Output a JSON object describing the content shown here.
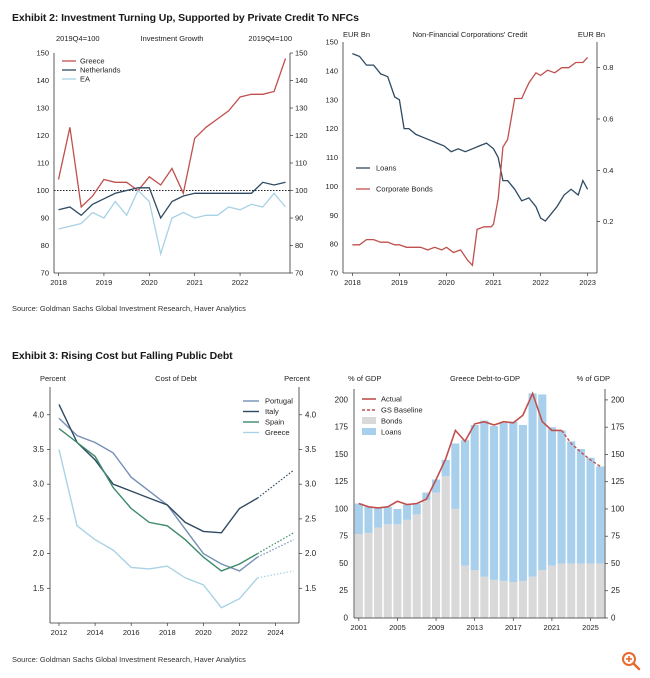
{
  "exhibit2": {
    "title": "Exhibit 2: Investment Turning Up, Supported by Private Credit To NFCs",
    "source": "Source: Goldman Sachs Global Investment Research, Haver Analytics"
  },
  "exhibit3": {
    "title": "Exhibit 3: Rising Cost but Falling Public Debt",
    "source": "Source: Goldman Sachs Global Investment Research, Haver Analytics"
  },
  "colors": {
    "red": "#c0504d",
    "navy": "#2e4a62",
    "lightblue": "#a9d2e6",
    "blue": "#7590b6",
    "green": "#3d8a6a",
    "grey": "#d9d9d9",
    "bars": "#a8d0ec"
  },
  "zoom_icon": "zoom-in-icon",
  "chart_data": [
    {
      "id": "investment-growth",
      "type": "line",
      "title": "Investment Growth",
      "left_label": "2019Q4=100",
      "right_label": "2019Q4=100",
      "ylim": [
        70,
        150
      ],
      "y_ticks": [
        70,
        80,
        90,
        100,
        110,
        120,
        130,
        140,
        150
      ],
      "x_range": [
        2017.9,
        2023.1
      ],
      "x_ticks": [
        2018,
        2019,
        2020,
        2021,
        2022
      ],
      "reference_line": 100,
      "legend": "top-left",
      "series": [
        {
          "name": "Greece",
          "color_key": "red",
          "x": [
            2018.0,
            2018.25,
            2018.5,
            2018.75,
            2019.0,
            2019.25,
            2019.5,
            2019.75,
            2020.0,
            2020.25,
            2020.5,
            2020.75,
            2021.0,
            2021.25,
            2021.5,
            2021.75,
            2022.0,
            2022.25,
            2022.5,
            2022.75,
            2023.0
          ],
          "y": [
            104,
            123,
            94,
            98,
            104,
            103,
            103,
            100,
            105,
            102,
            108,
            99,
            119,
            123,
            126,
            129,
            134,
            135,
            135,
            136,
            148
          ]
        },
        {
          "name": "Netherlands",
          "color_key": "navy",
          "x": [
            2018.0,
            2018.25,
            2018.5,
            2018.75,
            2019.0,
            2019.25,
            2019.5,
            2019.75,
            2020.0,
            2020.25,
            2020.5,
            2020.75,
            2021.0,
            2021.25,
            2021.5,
            2021.75,
            2022.0,
            2022.25,
            2022.5,
            2022.75,
            2023.0
          ],
          "y": [
            93,
            94,
            91,
            95,
            97,
            99,
            100,
            101,
            101,
            90,
            96,
            98,
            99,
            99,
            99,
            99,
            99,
            99,
            103,
            102,
            103
          ]
        },
        {
          "name": "EA",
          "color_key": "lightblue",
          "x": [
            2018.0,
            2018.25,
            2018.5,
            2018.75,
            2019.0,
            2019.25,
            2019.5,
            2019.75,
            2020.0,
            2020.25,
            2020.5,
            2020.75,
            2021.0,
            2021.25,
            2021.5,
            2021.75,
            2022.0,
            2022.25,
            2022.5,
            2022.75,
            2023.0
          ],
          "y": [
            86,
            87,
            88,
            92,
            90,
            96,
            91,
            100,
            96,
            77,
            90,
            92,
            90,
            91,
            91,
            94,
            93,
            95,
            94,
            99,
            94
          ]
        }
      ]
    },
    {
      "id": "nfc-credit",
      "type": "line",
      "title": "Non-Financial Corporations' Credit",
      "left_label": "EUR Bn",
      "right_label": "EUR Bn",
      "ylim_left": [
        70,
        150
      ],
      "y_ticks_left": [
        70,
        80,
        90,
        100,
        110,
        120,
        130,
        140,
        150
      ],
      "ylim_right": [
        0.0,
        0.9
      ],
      "y_ticks_right": [
        0.2,
        0.4,
        0.6,
        0.8
      ],
      "x_range": [
        2017.8,
        2023.2
      ],
      "x_ticks": [
        2018,
        2019,
        2020,
        2021,
        2022,
        2023
      ],
      "legend": "middle-left",
      "series": [
        {
          "name": "Loans",
          "axis": "left",
          "color_key": "navy",
          "x": [
            2018.0,
            2018.15,
            2018.3,
            2018.45,
            2018.6,
            2018.75,
            2018.9,
            2019.0,
            2019.1,
            2019.2,
            2019.35,
            2019.5,
            2019.65,
            2019.8,
            2019.95,
            2020.1,
            2020.25,
            2020.4,
            2020.55,
            2020.7,
            2020.85,
            2021.0,
            2021.1,
            2021.2,
            2021.3,
            2021.45,
            2021.6,
            2021.75,
            2021.9,
            2022.0,
            2022.1,
            2022.2,
            2022.35,
            2022.5,
            2022.65,
            2022.8,
            2022.9,
            2023.0
          ],
          "y": [
            146,
            145,
            142,
            142,
            139,
            138,
            131,
            130,
            120,
            120,
            118,
            117,
            116,
            115,
            114,
            112,
            113,
            112,
            113,
            114,
            115,
            113,
            110,
            102,
            102,
            99,
            95,
            96,
            93,
            89,
            88,
            90,
            93,
            97,
            99,
            97,
            102,
            99
          ]
        },
        {
          "name": "Corporate Bonds",
          "axis": "right",
          "color_key": "red",
          "x": [
            2018.0,
            2018.15,
            2018.3,
            2018.45,
            2018.6,
            2018.75,
            2018.9,
            2019.0,
            2019.15,
            2019.3,
            2019.45,
            2019.6,
            2019.75,
            2019.9,
            2020.0,
            2020.15,
            2020.3,
            2020.45,
            2020.55,
            2020.65,
            2020.8,
            2020.95,
            2021.0,
            2021.1,
            2021.2,
            2021.3,
            2021.45,
            2021.6,
            2021.75,
            2021.9,
            2022.0,
            2022.15,
            2022.3,
            2022.45,
            2022.6,
            2022.75,
            2022.9,
            2023.0
          ],
          "y": [
            0.11,
            0.11,
            0.13,
            0.13,
            0.12,
            0.12,
            0.11,
            0.11,
            0.1,
            0.1,
            0.1,
            0.09,
            0.1,
            0.09,
            0.1,
            0.08,
            0.09,
            0.05,
            0.03,
            0.17,
            0.18,
            0.18,
            0.19,
            0.29,
            0.49,
            0.52,
            0.68,
            0.68,
            0.74,
            0.78,
            0.77,
            0.79,
            0.78,
            0.8,
            0.8,
            0.82,
            0.82,
            0.84
          ]
        }
      ]
    },
    {
      "id": "cost-of-debt",
      "type": "line",
      "title": "Cost of Debt",
      "left_label": "Percent",
      "right_label": "Percent",
      "ylim": [
        1.0,
        4.4
      ],
      "y_ticks": [
        1.5,
        2.0,
        2.5,
        3.0,
        3.5,
        4.0
      ],
      "x_range": [
        2011.5,
        2025.3
      ],
      "x_ticks": [
        2012,
        2014,
        2016,
        2018,
        2020,
        2022,
        2024
      ],
      "legend": "top-right",
      "projection_from": 2023,
      "series": [
        {
          "name": "Portugal",
          "color_key": "blue",
          "x": [
            2012,
            2013,
            2014,
            2015,
            2016,
            2017,
            2018,
            2019,
            2020,
            2021,
            2022,
            2023,
            2025
          ],
          "y": [
            3.95,
            3.7,
            3.6,
            3.45,
            3.1,
            2.9,
            2.7,
            2.35,
            2.0,
            1.85,
            1.75,
            1.95,
            2.2
          ]
        },
        {
          "name": "Italy",
          "color_key": "navy",
          "x": [
            2012,
            2013,
            2014,
            2015,
            2016,
            2017,
            2018,
            2019,
            2020,
            2021,
            2022,
            2023,
            2025
          ],
          "y": [
            4.15,
            3.6,
            3.35,
            3.0,
            2.9,
            2.8,
            2.7,
            2.45,
            2.32,
            2.3,
            2.65,
            2.8,
            3.2
          ]
        },
        {
          "name": "Spain",
          "color_key": "green",
          "x": [
            2012,
            2013,
            2014,
            2015,
            2016,
            2017,
            2018,
            2019,
            2020,
            2021,
            2022,
            2023,
            2025
          ],
          "y": [
            3.8,
            3.6,
            3.4,
            2.95,
            2.65,
            2.45,
            2.4,
            2.2,
            1.95,
            1.75,
            1.85,
            2.0,
            2.3
          ]
        },
        {
          "name": "Greece",
          "color_key": "lightblue",
          "x": [
            2012,
            2013,
            2014,
            2015,
            2016,
            2017,
            2018,
            2019,
            2020,
            2021,
            2022,
            2023,
            2025
          ],
          "y": [
            3.5,
            2.4,
            2.2,
            2.05,
            1.8,
            1.78,
            1.82,
            1.65,
            1.55,
            1.22,
            1.35,
            1.65,
            1.75
          ]
        }
      ]
    },
    {
      "id": "greece-debt-to-gdp",
      "type": "bar",
      "title": "Greece Debt-to-GDP",
      "left_label": "% of GDP",
      "right_label": "% of GDP",
      "ylim": [
        0,
        210
      ],
      "y_ticks": [
        0,
        25,
        50,
        75,
        100,
        125,
        150,
        175,
        200
      ],
      "x_ticks": [
        2001,
        2005,
        2009,
        2013,
        2017,
        2021,
        2025
      ],
      "legend": "top-left",
      "years": [
        2001,
        2002,
        2003,
        2004,
        2005,
        2006,
        2007,
        2008,
        2009,
        2010,
        2011,
        2012,
        2013,
        2014,
        2015,
        2016,
        2017,
        2018,
        2019,
        2020,
        2021,
        2022,
        2023,
        2024,
        2025,
        2026
      ],
      "series": [
        {
          "name": "Bonds",
          "color_key": "grey",
          "values": [
            77,
            78,
            83,
            86,
            86,
            90,
            95,
            108,
            115,
            130,
            100,
            48,
            44,
            38,
            35,
            34,
            33,
            34,
            38,
            44,
            48,
            50,
            50,
            50,
            50,
            50
          ]
        },
        {
          "name": "Loans",
          "color_key": "bars",
          "values": [
            28,
            24,
            18,
            16,
            14,
            14,
            10,
            7,
            12,
            15,
            60,
            115,
            133,
            143,
            141,
            145,
            147,
            143,
            168,
            161,
            127,
            122,
            112,
            105,
            97,
            89
          ]
        },
        {
          "name": "Actual",
          "color_key": "red",
          "style": "line",
          "x": [
            2001,
            2002,
            2003,
            2004,
            2005,
            2006,
            2007,
            2008,
            2009,
            2010,
            2011,
            2012,
            2013,
            2014,
            2015,
            2016,
            2017,
            2018,
            2019,
            2020,
            2021,
            2022
          ],
          "values": [
            105,
            102,
            101,
            102,
            107,
            104,
            105,
            109,
            127,
            146,
            172,
            162,
            178,
            180,
            177,
            180,
            179,
            186,
            206,
            180,
            172,
            172
          ]
        },
        {
          "name": "GS Baseline",
          "color_key": "red",
          "style": "dashed",
          "x": [
            2022,
            2023,
            2024,
            2025,
            2026
          ],
          "values": [
            172,
            160,
            152,
            145,
            139
          ]
        }
      ]
    }
  ]
}
